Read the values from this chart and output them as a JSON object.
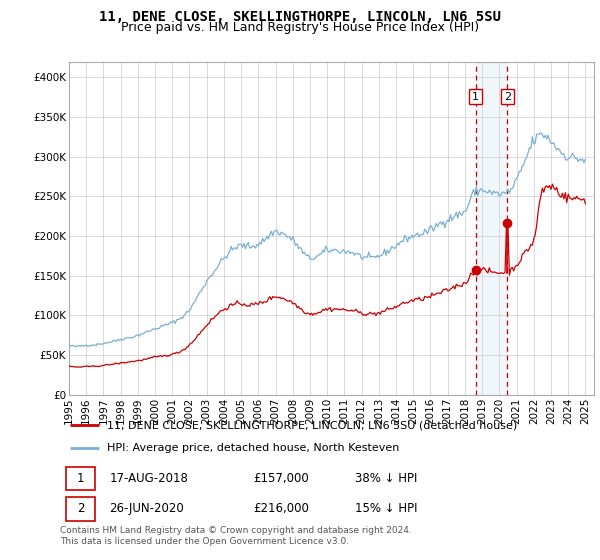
{
  "title": "11, DENE CLOSE, SKELLINGTHORPE, LINCOLN, LN6 5SU",
  "subtitle": "Price paid vs. HM Land Registry's House Price Index (HPI)",
  "legend_line1": "11, DENE CLOSE, SKELLINGTHORPE, LINCOLN, LN6 5SU (detached house)",
  "legend_line2": "HPI: Average price, detached house, North Kesteven",
  "footnote": "Contains HM Land Registry data © Crown copyright and database right 2024.\nThis data is licensed under the Open Government Licence v3.0.",
  "table_row1": [
    "1",
    "17-AUG-2018",
    "£157,000",
    "38% ↓ HPI"
  ],
  "table_row2": [
    "2",
    "26-JUN-2020",
    "£216,000",
    "15% ↓ HPI"
  ],
  "point1_x": 2018.625,
  "point1_y": 157000,
  "point2_x": 2020.458,
  "point2_y": 216000,
  "vline1_x": 2018.625,
  "vline2_x": 2020.458,
  "red_color": "#cc0000",
  "blue_color": "#7ab0d4",
  "vline_color": "#cc0000",
  "vline_fill": "#ddeeff",
  "ylim": [
    0,
    420000
  ],
  "xlim": [
    1995,
    2025.5
  ],
  "yticks": [
    0,
    50000,
    100000,
    150000,
    200000,
    250000,
    300000,
    350000,
    400000
  ],
  "ytick_labels": [
    "£0",
    "£50K",
    "£100K",
    "£150K",
    "£200K",
    "£250K",
    "£300K",
    "£350K",
    "£400K"
  ],
  "xtick_years": [
    1995,
    1996,
    1997,
    1998,
    1999,
    2000,
    2001,
    2002,
    2003,
    2004,
    2005,
    2006,
    2007,
    2008,
    2009,
    2010,
    2011,
    2012,
    2013,
    2014,
    2015,
    2016,
    2017,
    2018,
    2019,
    2020,
    2021,
    2022,
    2023,
    2024,
    2025
  ],
  "title_fontsize": 10,
  "subtitle_fontsize": 9,
  "axis_fontsize": 7.5,
  "legend_fontsize": 8,
  "footnote_fontsize": 6.5
}
